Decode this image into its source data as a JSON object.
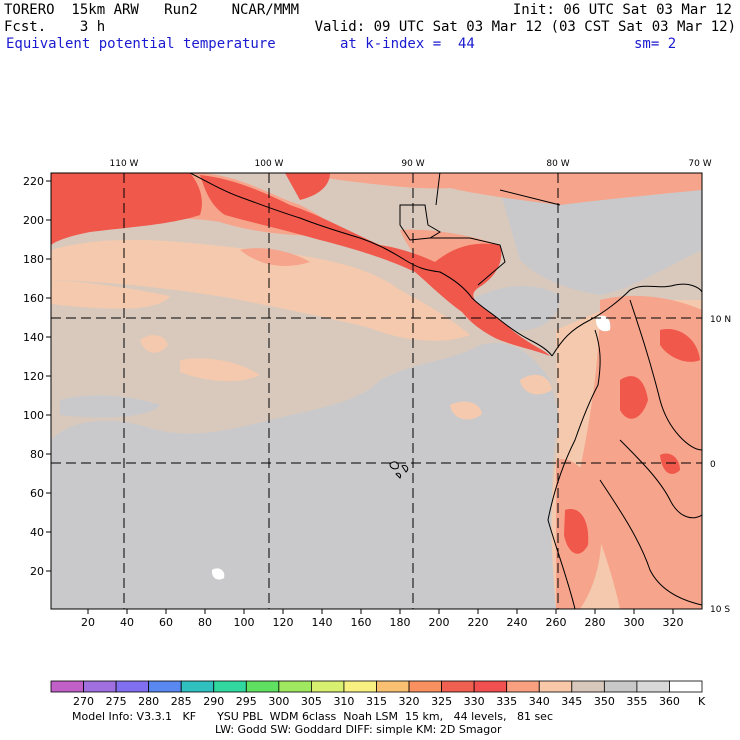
{
  "header": {
    "model": "TORERO  15km ARW   Run2    NCAR/MMM",
    "init": "Init: 06 UTC Sat 03 Mar 12",
    "fcst": "Fcst.    3 h",
    "valid": "Valid: 09 UTC Sat 03 Mar 12 (03 CST Sat 03 Mar 12)",
    "field": "Equivalent potential temperature",
    "level": "at k-index =  44",
    "smooth": "sm= 2"
  },
  "axes": {
    "lon_labels": [
      "110 W",
      "100 W",
      "90 W",
      "80 W",
      "70 W"
    ],
    "lat_labels": [
      "10 N",
      "0",
      "10 S"
    ],
    "y_ticks": [
      "220",
      "200",
      "180",
      "160",
      "140",
      "120",
      "100",
      "80",
      "60",
      "40",
      "20"
    ],
    "x_ticks": [
      "20",
      "40",
      "60",
      "80",
      "100",
      "120",
      "140",
      "160",
      "180",
      "200",
      "220",
      "240",
      "260",
      "280",
      "300",
      "320"
    ]
  },
  "colorbar": {
    "levels": [
      "270",
      "275",
      "280",
      "285",
      "290",
      "295",
      "300",
      "305",
      "310",
      "315",
      "320",
      "325",
      "330",
      "335",
      "340",
      "345",
      "350",
      "355",
      "360"
    ],
    "unit": "K",
    "colors": [
      "#c060c8",
      "#a070e0",
      "#8070f0",
      "#5888f0",
      "#30c0c0",
      "#30d8a0",
      "#60e060",
      "#a0e860",
      "#d8f070",
      "#f8f080",
      "#f8c070",
      "#f89060",
      "#f06050",
      "#f05050",
      "#f8a080",
      "#f8c8a8",
      "#d8c8bc",
      "#c8c8c8",
      "#d8d8d8",
      "#ffffff"
    ]
  },
  "footer": {
    "line1": "Model Info: V3.3.1   KF      YSU PBL  WDM 6class  Noah LSM  15 km,   44 levels,   81 sec",
    "line2": "LW: Godd SW: Goddard DIFF: simple KM: 2D Smagor"
  }
}
